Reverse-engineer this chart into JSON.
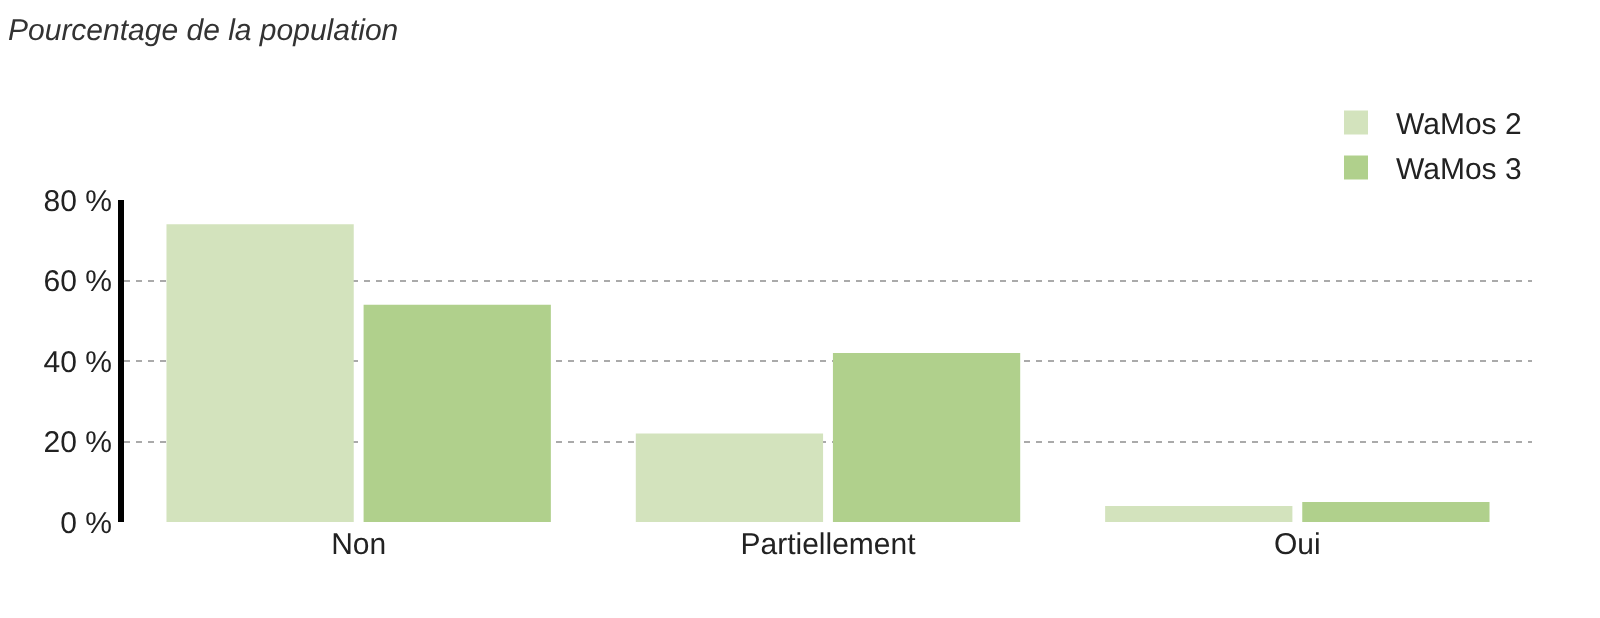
{
  "chart_data": {
    "type": "bar",
    "title": "Pourcentage de la population",
    "categories": [
      "Non",
      "Partiellement",
      "Oui"
    ],
    "series": [
      {
        "name": "WaMos 2",
        "color": "#d3e3bd",
        "values": [
          74,
          22,
          4
        ]
      },
      {
        "name": "WaMos 3",
        "color": "#b0d08c",
        "values": [
          54,
          42,
          5
        ]
      }
    ],
    "ylim": [
      0,
      80
    ],
    "yticks": [
      {
        "value": 0,
        "label": "0 %"
      },
      {
        "value": 20,
        "label": "20 %"
      },
      {
        "value": 40,
        "label": "40 %"
      },
      {
        "value": 60,
        "label": "60 %"
      },
      {
        "value": 80,
        "label": "80 %"
      }
    ],
    "grid": "y",
    "legend": "top right"
  }
}
